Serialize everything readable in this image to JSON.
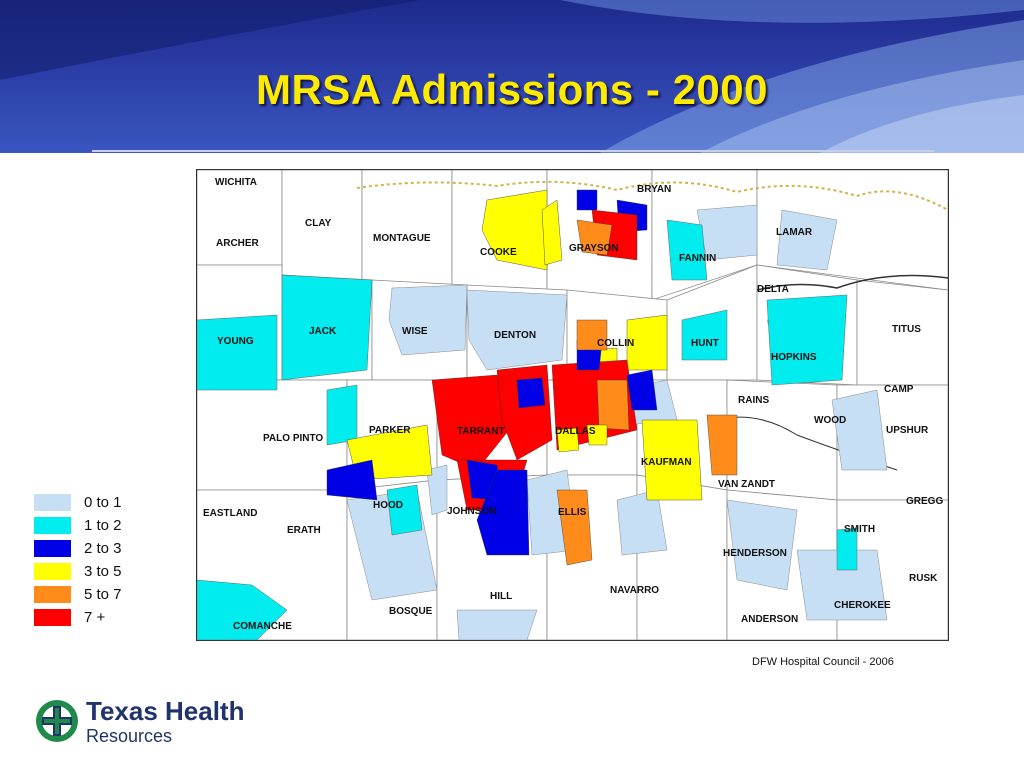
{
  "slide": {
    "title": "MRSA Admissions - 2000",
    "source": "DFW Hospital Council - 2006"
  },
  "legend": [
    {
      "label": "0 to 1",
      "color": "#c6dff5"
    },
    {
      "label": "1 to 2",
      "color": "#00ecef"
    },
    {
      "label": "2 to 3",
      "color": "#0000e6"
    },
    {
      "label": "3 to 5",
      "color": "#ffff00"
    },
    {
      "label": "5 to 7",
      "color": "#ff8c1a"
    },
    {
      "label": "7 +",
      "color": "#ff0000"
    }
  ],
  "counties": [
    "WICHITA",
    "CLAY",
    "ARCHER",
    "MONTAGUE",
    "COOKE",
    "GRAYSON",
    "BRYAN",
    "LAMAR",
    "FANNIN",
    "DELTA",
    "YOUNG",
    "JACK",
    "WISE",
    "DENTON",
    "COLLIN",
    "HUNT",
    "HOPKINS",
    "TITUS",
    "CAMP",
    "RAINS",
    "WOOD",
    "UPSHUR",
    "PALO PINTO",
    "PARKER",
    "TARRANT",
    "DALLAS",
    "KAUFMAN",
    "VAN ZANDT",
    "GREGG",
    "EASTLAND",
    "HOOD",
    "JOHNSON",
    "ELLIS",
    "SMITH",
    "ERATH",
    "HENDERSON",
    "RUSK",
    "BOSQUE",
    "HILL",
    "NAVARRO",
    "CHEROKEE",
    "ANDERSON",
    "COMANCHE"
  ],
  "logo": {
    "line1": "Texas Health",
    "line2": "Resources"
  },
  "colors": {
    "title": "#ffeb00",
    "header": "#2b3da6",
    "brand_green": "#1f8a4c",
    "brand_navy": "#20336e"
  }
}
